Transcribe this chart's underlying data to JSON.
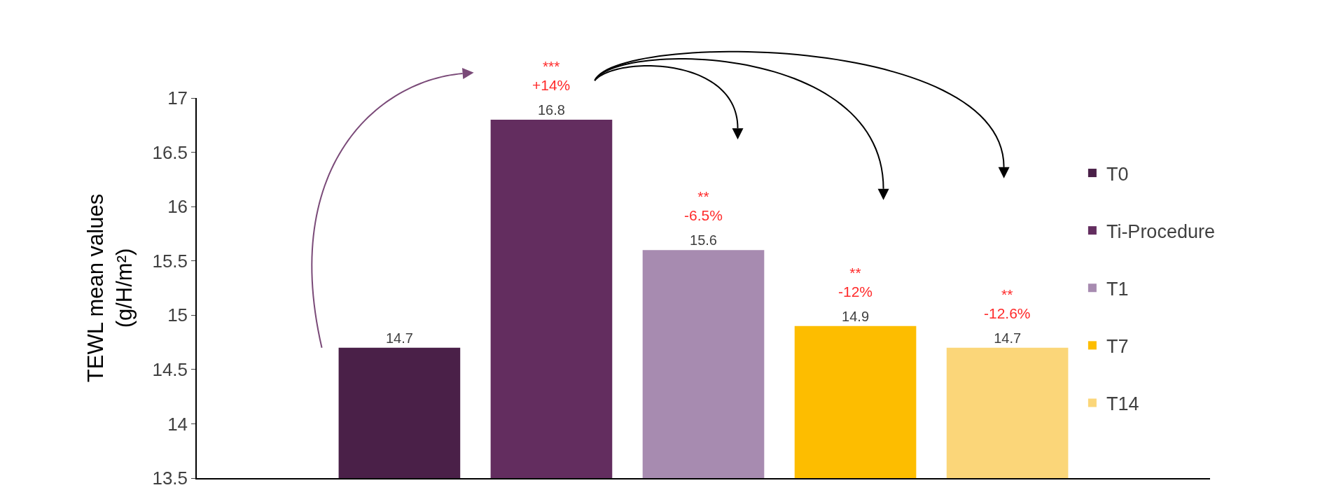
{
  "chart_data": {
    "type": "bar",
    "ylabel": "TEWL mean values\n(g/H/m²)",
    "categories": [
      null
    ],
    "series": [
      {
        "name": "T0",
        "color": "#4a2048",
        "values": [
          14.7
        ]
      },
      {
        "name": "Ti-Procedure",
        "color": "#632d5f",
        "values": [
          16.8
        ]
      },
      {
        "name": "T1",
        "color": "#a78bb0",
        "values": [
          15.6
        ]
      },
      {
        "name": "T7",
        "color": "#fdbd00",
        "values": [
          14.9
        ]
      },
      {
        "name": "T14",
        "color": "#fbd679",
        "values": [
          14.7
        ]
      }
    ],
    "ylim": [
      13.5,
      17
    ],
    "yticks": [
      13.5,
      14,
      14.5,
      15,
      15.5,
      16,
      16.5,
      17
    ],
    "grid": false,
    "legend": "right",
    "data_labels": true,
    "annotations": [
      "***\n+14%",
      "**\n-6.5%",
      "**\n-12%",
      "**\n-12.6%"
    ]
  }
}
